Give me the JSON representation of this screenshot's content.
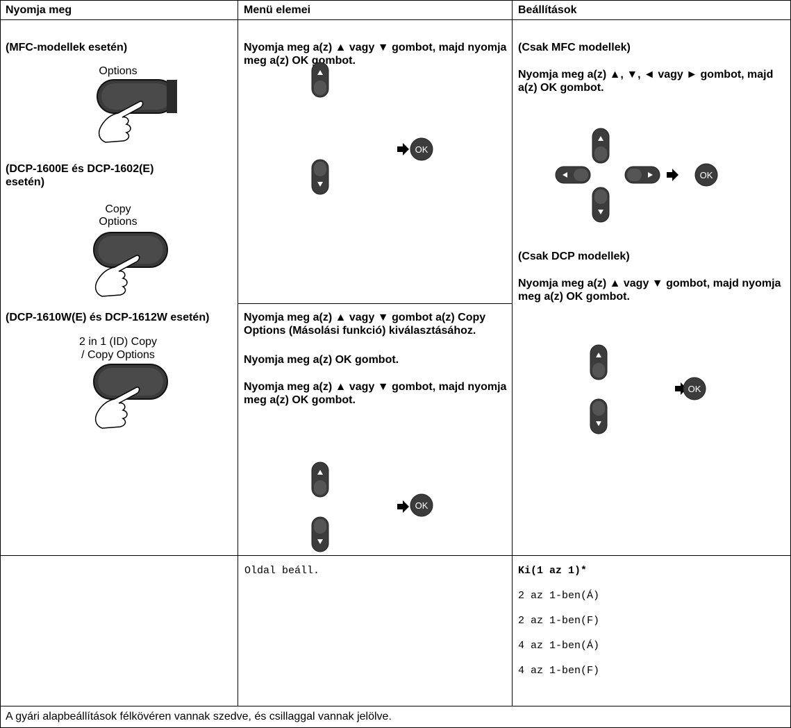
{
  "header": {
    "col1": "Nyomja meg",
    "col2": "Menü elemei",
    "col3": "Beállítások"
  },
  "press": {
    "mfc_title": "(MFC-modellek esetén)",
    "mfc_button": "Options",
    "dcp1600_title": "(DCP-1600E és DCP-1602(E) esetén)",
    "dcp1600_button": [
      "Copy",
      "Options"
    ],
    "dcp1610_title": "(DCP-1610W(E) és DCP-1612W esetén)",
    "dcp1610_button": [
      "2 in 1 (ID) Copy",
      "/ Copy Options"
    ]
  },
  "menu": {
    "top": "Nyomja meg a(z) ▲ vagy ▼ gombot, majd nyomja meg a(z) OK gombot.",
    "bottom": [
      "Nyomja meg a(z) ▲ vagy ▼ gombot a(z) Copy Options (Másolási funkció) kiválasztásához.",
      "Nyomja meg a(z) OK gombot.",
      "Nyomja meg a(z) ▲ vagy ▼ gombot, majd nyomja meg a(z) OK gombot."
    ],
    "ok_key": "OK"
  },
  "settings": {
    "mfc_title": "(Csak MFC modellek)",
    "mfc_text": "Nyomja meg a(z) ▲, ▼, ◄ vagy ► gombot, majd a(z) OK gombot.",
    "dcp_title": "(Csak DCP modellek)",
    "dcp_text": "Nyomja meg a(z) ▲ vagy ▼ gombot, majd nyomja meg a(z) OK gombot."
  },
  "table": {
    "rows": [
      [
        "",
        "Oldal beáll.",
        [
          "Ki(1 az 1)*",
          "2 az 1-ben(Á)",
          "2 az 1-ben(F)",
          "4 az 1-ben(Á)",
          "4 az 1-ben(F)"
        ]
      ]
    ]
  },
  "footer": "A gyári alapbeállítások félkövéren vannak szedve, és csillaggal vannak jelölve."
}
